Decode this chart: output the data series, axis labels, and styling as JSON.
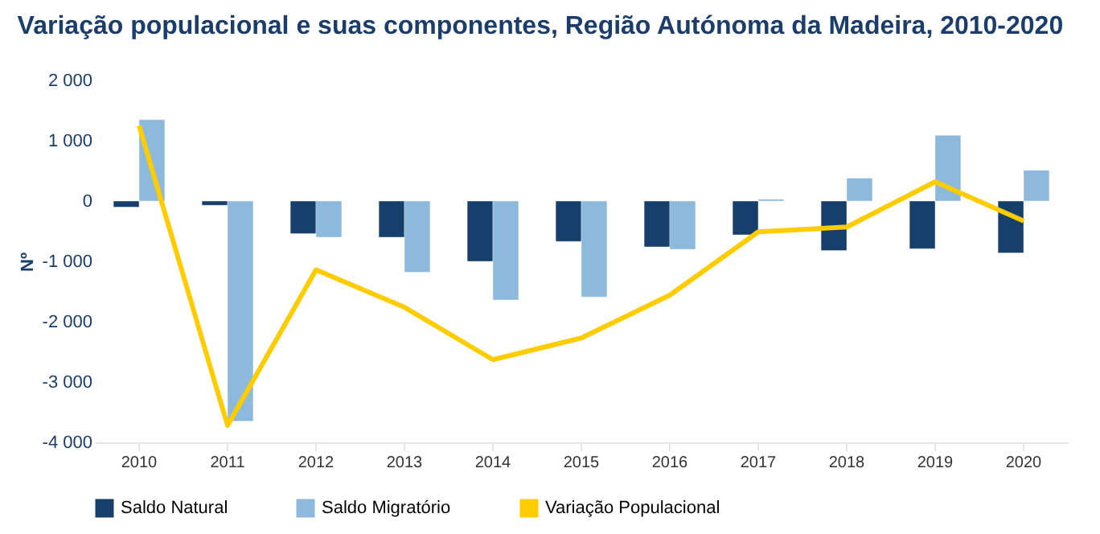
{
  "chart_data": {
    "type": "bar",
    "title": "Variação populacional e suas componentes, Região Autónoma da Madeira, 2010-2020",
    "ylabel": "Nº",
    "categories": [
      "2010",
      "2011",
      "2012",
      "2013",
      "2014",
      "2015",
      "2016",
      "2017",
      "2018",
      "2019",
      "2020"
    ],
    "series": [
      {
        "name": "Saldo Natural",
        "color": "#173f6b",
        "values": [
          -100,
          -70,
          -540,
          -600,
          -1000,
          -670,
          -760,
          -560,
          -820,
          -790,
          -860
        ]
      },
      {
        "name": "Saldo Migratório",
        "color": "#8dbadc",
        "values": [
          1350,
          -3650,
          -600,
          -1180,
          -1640,
          -1590,
          -800,
          30,
          380,
          1090,
          510
        ]
      },
      {
        "name": "Variação Populacional",
        "type": "line",
        "color": "#ffcc00",
        "values": [
          1250,
          -3720,
          -1140,
          -1760,
          -2630,
          -2270,
          -1560,
          -510,
          -430,
          320,
          -330
        ]
      }
    ],
    "ylim": [
      -4000,
      2000
    ],
    "yticks": [
      {
        "value": -4000,
        "label": "-4 000"
      },
      {
        "value": -3000,
        "label": "-3 000"
      },
      {
        "value": -2000,
        "label": "-2 000"
      },
      {
        "value": -1000,
        "label": "-1 000"
      },
      0,
      {
        "value": 1000,
        "label": "1 000"
      },
      {
        "value": 2000,
        "label": "2 000"
      }
    ],
    "legend": "bottom",
    "grid": false
  }
}
